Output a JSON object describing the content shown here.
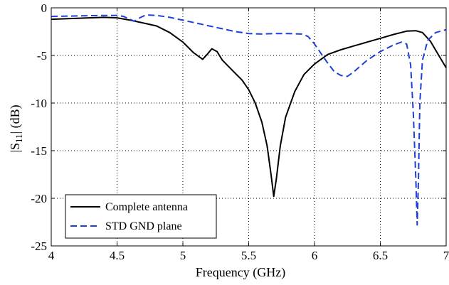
{
  "chart_data": {
    "type": "line",
    "xlabel": "Frequency (GHz)",
    "ylabel_main": "|S",
    "ylabel_sub": "11",
    "ylabel_end": "| (dB)",
    "xlim": [
      4,
      7
    ],
    "ylim": [
      -25,
      0
    ],
    "x_ticks": [
      4,
      4.5,
      5,
      5.5,
      6,
      6.5,
      7
    ],
    "x_tick_labels": [
      "4",
      "4.5",
      "5",
      "5.5",
      "6",
      "6.5",
      "7"
    ],
    "y_ticks": [
      0,
      -5,
      -10,
      -15,
      -20,
      -25
    ],
    "y_tick_labels": [
      "0",
      "-5",
      "-10",
      "-15",
      "-20",
      "-25"
    ],
    "grid": true,
    "legend_position": "bottom-left",
    "series": [
      {
        "name": "Complete antenna",
        "color": "#000000",
        "style": "solid",
        "points": [
          [
            4.0,
            -1.2
          ],
          [
            4.2,
            -1.1
          ],
          [
            4.4,
            -1.0
          ],
          [
            4.5,
            -1.05
          ],
          [
            4.6,
            -1.3
          ],
          [
            4.7,
            -1.6
          ],
          [
            4.8,
            -1.9
          ],
          [
            4.9,
            -2.6
          ],
          [
            5.0,
            -3.6
          ],
          [
            5.08,
            -4.7
          ],
          [
            5.15,
            -5.4
          ],
          [
            5.19,
            -4.8
          ],
          [
            5.22,
            -4.3
          ],
          [
            5.26,
            -4.6
          ],
          [
            5.3,
            -5.5
          ],
          [
            5.35,
            -6.2
          ],
          [
            5.4,
            -6.9
          ],
          [
            5.45,
            -7.6
          ],
          [
            5.5,
            -8.6
          ],
          [
            5.55,
            -10.0
          ],
          [
            5.6,
            -12.0
          ],
          [
            5.64,
            -14.5
          ],
          [
            5.67,
            -17.5
          ],
          [
            5.69,
            -19.8
          ],
          [
            5.71,
            -18.0
          ],
          [
            5.74,
            -14.5
          ],
          [
            5.78,
            -11.5
          ],
          [
            5.85,
            -8.8
          ],
          [
            5.92,
            -7.0
          ],
          [
            6.0,
            -5.9
          ],
          [
            6.1,
            -4.9
          ],
          [
            6.2,
            -4.4
          ],
          [
            6.3,
            -4.0
          ],
          [
            6.4,
            -3.6
          ],
          [
            6.5,
            -3.2
          ],
          [
            6.6,
            -2.8
          ],
          [
            6.7,
            -2.45
          ],
          [
            6.77,
            -2.4
          ],
          [
            6.82,
            -2.6
          ],
          [
            6.88,
            -3.5
          ],
          [
            6.94,
            -4.9
          ],
          [
            7.0,
            -6.3
          ]
        ]
      },
      {
        "name": "STD GND plane",
        "color": "#1f3fd9",
        "style": "dashed",
        "points": [
          [
            4.0,
            -0.9
          ],
          [
            4.2,
            -0.85
          ],
          [
            4.4,
            -0.8
          ],
          [
            4.5,
            -0.8
          ],
          [
            4.55,
            -0.9
          ],
          [
            4.63,
            -1.4
          ],
          [
            4.68,
            -1.0
          ],
          [
            4.72,
            -0.75
          ],
          [
            4.8,
            -0.8
          ],
          [
            4.9,
            -1.0
          ],
          [
            5.0,
            -1.3
          ],
          [
            5.1,
            -1.6
          ],
          [
            5.2,
            -1.9
          ],
          [
            5.3,
            -2.2
          ],
          [
            5.4,
            -2.5
          ],
          [
            5.5,
            -2.7
          ],
          [
            5.6,
            -2.75
          ],
          [
            5.7,
            -2.7
          ],
          [
            5.8,
            -2.7
          ],
          [
            5.9,
            -2.75
          ],
          [
            5.95,
            -3.0
          ],
          [
            6.0,
            -3.8
          ],
          [
            6.05,
            -4.8
          ],
          [
            6.1,
            -5.8
          ],
          [
            6.15,
            -6.7
          ],
          [
            6.2,
            -7.1
          ],
          [
            6.25,
            -7.2
          ],
          [
            6.3,
            -6.7
          ],
          [
            6.4,
            -5.5
          ],
          [
            6.5,
            -4.6
          ],
          [
            6.6,
            -3.9
          ],
          [
            6.66,
            -3.6
          ],
          [
            6.7,
            -3.8
          ],
          [
            6.73,
            -6.0
          ],
          [
            6.75,
            -11.0
          ],
          [
            6.77,
            -18.0
          ],
          [
            6.78,
            -22.8
          ],
          [
            6.79,
            -18.0
          ],
          [
            6.8,
            -10.0
          ],
          [
            6.82,
            -5.5
          ],
          [
            6.86,
            -3.4
          ],
          [
            6.92,
            -2.6
          ],
          [
            7.0,
            -2.3
          ]
        ]
      }
    ]
  }
}
